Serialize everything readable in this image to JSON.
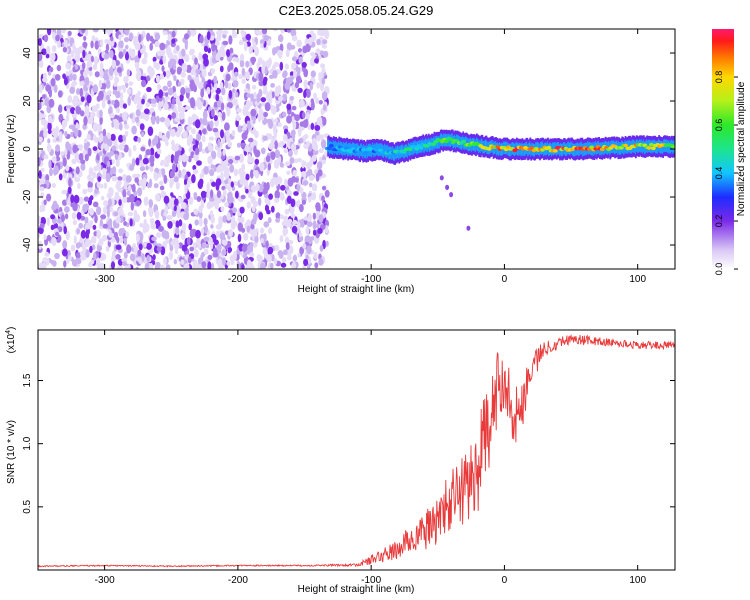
{
  "title": "C2E3.2025.058.05.24.G29",
  "chart_data": [
    {
      "type": "heatmap",
      "xlabel": "Height of straight line (km)",
      "ylabel": "Frequency (Hz)",
      "xlim": [
        -350,
        128
      ],
      "ylim": [
        -50,
        50
      ],
      "x_ticks": [
        -300,
        -200,
        -100,
        0,
        100
      ],
      "y_ticks": [
        -40,
        -20,
        0,
        20,
        40
      ],
      "colorbar": {
        "label": "Normalized spectral amplitude",
        "range": [
          0.0,
          1.0
        ],
        "ticks": [
          0.0,
          0.2,
          0.4,
          0.6,
          0.8
        ],
        "tick_labels": [
          "0.0",
          "0.2",
          "0.4",
          "0.6",
          "0.8"
        ]
      },
      "regions": [
        {
          "x": [
            -350,
            -133
          ],
          "y": [
            -50,
            50
          ],
          "amplitude": "low (0.0-0.2)",
          "description": "broadband noise"
        },
        {
          "x": [
            -133,
            128
          ],
          "y": [
            -5,
            5
          ],
          "amplitude": "0.2-1.0",
          "description": "carrier signal"
        }
      ],
      "carrier_track": {
        "x": [
          -133,
          -120,
          -105,
          -95,
          -85,
          -75,
          -65,
          -55,
          -45,
          -35,
          -25,
          -15,
          0,
          20,
          60,
          100,
          128
        ],
        "freq": [
          1,
          0,
          -1,
          0,
          -2,
          -1,
          1,
          2,
          4,
          3,
          2,
          1,
          0,
          0,
          0,
          1,
          1
        ],
        "amplitude": [
          0.35,
          0.4,
          0.4,
          0.4,
          0.45,
          0.5,
          0.5,
          0.55,
          0.6,
          0.6,
          0.65,
          0.75,
          0.9,
          0.9,
          0.9,
          0.8,
          0.75
        ]
      },
      "stray_points": [
        {
          "x": -47,
          "freq": -12
        },
        {
          "x": -43,
          "freq": -16
        },
        {
          "x": -40,
          "freq": -19
        },
        {
          "x": -27,
          "freq": -33
        }
      ]
    },
    {
      "type": "line",
      "xlabel": "Height of straight line (km)",
      "ylabel": "SNR (10 * v/v)",
      "scale_label": "(x10",
      "scale_exponent": "4",
      "scale_suffix": ")",
      "xlim": [
        -350,
        128
      ],
      "ylim": [
        0,
        1.9
      ],
      "x_ticks": [
        -300,
        -200,
        -100,
        0,
        100
      ],
      "y_ticks": [
        0.5,
        1.0,
        1.5
      ],
      "y_tick_labels": [
        "0.5",
        "1.0",
        "1.5"
      ],
      "series": [
        {
          "color": "#e83a3a",
          "x": [
            -350,
            -300,
            -250,
            -200,
            -150,
            -110,
            -100,
            -90,
            -80,
            -70,
            -60,
            -50,
            -40,
            -30,
            -20,
            -15,
            -10,
            -5,
            0,
            5,
            10,
            15,
            20,
            30,
            40,
            50,
            60,
            80,
            100,
            128
          ],
          "y": [
            0.03,
            0.035,
            0.03,
            0.035,
            0.035,
            0.04,
            0.08,
            0.12,
            0.16,
            0.25,
            0.3,
            0.4,
            0.55,
            0.65,
            0.8,
            1.05,
            1.15,
            1.45,
            1.55,
            1.3,
            1.2,
            1.4,
            1.6,
            1.75,
            1.8,
            1.83,
            1.82,
            1.8,
            1.78,
            1.78
          ],
          "noise": [
            0.005,
            0.005,
            0.005,
            0.005,
            0.005,
            0.01,
            0.04,
            0.06,
            0.08,
            0.12,
            0.15,
            0.2,
            0.25,
            0.3,
            0.35,
            0.35,
            0.35,
            0.3,
            0.25,
            0.25,
            0.25,
            0.2,
            0.15,
            0.06,
            0.05,
            0.04,
            0.04,
            0.03,
            0.03,
            0.03
          ]
        }
      ]
    }
  ]
}
